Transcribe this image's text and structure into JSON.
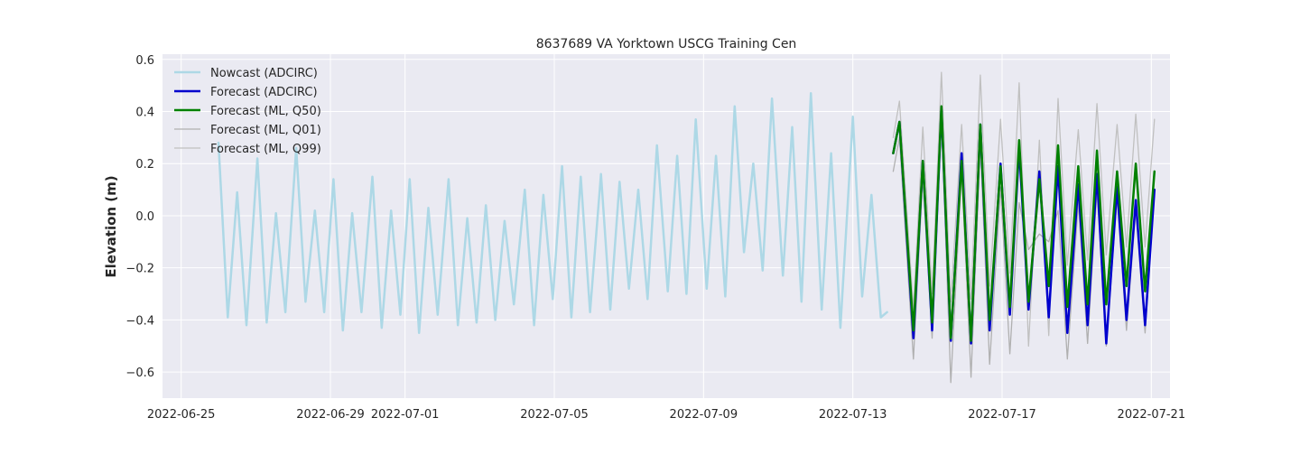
{
  "chart_data": {
    "type": "line",
    "title": "8637689 VA Yorktown USCG Training Cen",
    "xlabel": "",
    "ylabel": "Elevation (m)",
    "xlim": [
      "2022-06-24T12:00",
      "2022-07-21T12:00"
    ],
    "ylim": [
      -0.7,
      0.62
    ],
    "x_ticks": [
      "2022-06-25",
      "2022-06-29",
      "2022-07-01",
      "2022-07-05",
      "2022-07-09",
      "2022-07-13",
      "2022-07-17",
      "2022-07-21"
    ],
    "y_ticks": [
      -0.6,
      -0.4,
      -0.2,
      0.0,
      0.2,
      0.4,
      0.6
    ],
    "y_tick_labels": [
      "−0.6",
      "−0.4",
      "−0.2",
      "0.0",
      "0.2",
      "0.4",
      "0.6"
    ],
    "grid": true,
    "legend_position": "top-left",
    "series": [
      {
        "name": "Nowcast (ADCIRC)",
        "color": "#add8e6",
        "width": 2.5,
        "points": [
          [
            "2022-06-26T00:00",
            0.28
          ],
          [
            "2022-06-26T06:00",
            -0.39
          ],
          [
            "2022-06-26T12:00",
            0.09
          ],
          [
            "2022-06-26T18:00",
            -0.42
          ],
          [
            "2022-06-27T01:00",
            0.22
          ],
          [
            "2022-06-27T07:00",
            -0.41
          ],
          [
            "2022-06-27T13:00",
            0.01
          ],
          [
            "2022-06-27T19:00",
            -0.37
          ],
          [
            "2022-06-28T02:00",
            0.26
          ],
          [
            "2022-06-28T08:00",
            -0.33
          ],
          [
            "2022-06-28T14:00",
            0.02
          ],
          [
            "2022-06-28T20:00",
            -0.37
          ],
          [
            "2022-06-29T02:00",
            0.14
          ],
          [
            "2022-06-29T08:00",
            -0.44
          ],
          [
            "2022-06-29T14:00",
            0.01
          ],
          [
            "2022-06-29T20:00",
            -0.37
          ],
          [
            "2022-06-30T03:00",
            0.15
          ],
          [
            "2022-06-30T09:00",
            -0.43
          ],
          [
            "2022-06-30T15:00",
            0.02
          ],
          [
            "2022-06-30T21:00",
            -0.38
          ],
          [
            "2022-07-01T03:00",
            0.14
          ],
          [
            "2022-07-01T09:00",
            -0.45
          ],
          [
            "2022-07-01T15:00",
            0.03
          ],
          [
            "2022-07-01T21:00",
            -0.38
          ],
          [
            "2022-07-02T04:00",
            0.14
          ],
          [
            "2022-07-02T10:00",
            -0.42
          ],
          [
            "2022-07-02T16:00",
            -0.01
          ],
          [
            "2022-07-02T22:00",
            -0.41
          ],
          [
            "2022-07-03T04:00",
            0.04
          ],
          [
            "2022-07-03T10:00",
            -0.4
          ],
          [
            "2022-07-03T16:00",
            -0.02
          ],
          [
            "2022-07-03T22:00",
            -0.34
          ],
          [
            "2022-07-04T05:00",
            0.1
          ],
          [
            "2022-07-04T11:00",
            -0.42
          ],
          [
            "2022-07-04T17:00",
            0.08
          ],
          [
            "2022-07-04T23:00",
            -0.32
          ],
          [
            "2022-07-05T05:00",
            0.19
          ],
          [
            "2022-07-05T11:00",
            -0.39
          ],
          [
            "2022-07-05T17:00",
            0.15
          ],
          [
            "2022-07-05T23:00",
            -0.37
          ],
          [
            "2022-07-06T06:00",
            0.16
          ],
          [
            "2022-07-06T12:00",
            -0.36
          ],
          [
            "2022-07-06T18:00",
            0.13
          ],
          [
            "2022-07-07T00:00",
            -0.28
          ],
          [
            "2022-07-07T06:00",
            0.1
          ],
          [
            "2022-07-07T12:00",
            -0.32
          ],
          [
            "2022-07-07T18:00",
            0.27
          ],
          [
            "2022-07-08T01:00",
            -0.29
          ],
          [
            "2022-07-08T07:00",
            0.23
          ],
          [
            "2022-07-08T13:00",
            -0.3
          ],
          [
            "2022-07-08T19:00",
            0.37
          ],
          [
            "2022-07-09T02:00",
            -0.28
          ],
          [
            "2022-07-09T08:00",
            0.23
          ],
          [
            "2022-07-09T14:00",
            -0.31
          ],
          [
            "2022-07-09T20:00",
            0.42
          ],
          [
            "2022-07-10T02:00",
            -0.14
          ],
          [
            "2022-07-10T08:00",
            0.2
          ],
          [
            "2022-07-10T14:00",
            -0.21
          ],
          [
            "2022-07-10T20:00",
            0.45
          ],
          [
            "2022-07-11T03:00",
            -0.23
          ],
          [
            "2022-07-11T09:00",
            0.34
          ],
          [
            "2022-07-11T15:00",
            -0.33
          ],
          [
            "2022-07-11T21:00",
            0.47
          ],
          [
            "2022-07-12T04:00",
            -0.36
          ],
          [
            "2022-07-12T10:00",
            0.24
          ],
          [
            "2022-07-12T16:00",
            -0.43
          ],
          [
            "2022-07-13T00:00",
            0.38
          ],
          [
            "2022-07-13T06:00",
            -0.31
          ],
          [
            "2022-07-13T12:00",
            0.08
          ],
          [
            "2022-07-13T18:00",
            -0.39
          ],
          [
            "2022-07-13T22:00",
            -0.37
          ]
        ]
      },
      {
        "name": "Forecast (ADCIRC)",
        "color": "#0000cd",
        "width": 2.5,
        "points": [
          [
            "2022-07-14T02:00",
            0.24
          ],
          [
            "2022-07-14T06:00",
            0.36
          ],
          [
            "2022-07-14T15:00",
            -0.47
          ],
          [
            "2022-07-14T21:00",
            0.21
          ],
          [
            "2022-07-15T03:00",
            -0.44
          ],
          [
            "2022-07-15T09:00",
            0.41
          ],
          [
            "2022-07-15T15:00",
            -0.48
          ],
          [
            "2022-07-15T22:00",
            0.24
          ],
          [
            "2022-07-16T04:00",
            -0.49
          ],
          [
            "2022-07-16T10:00",
            0.35
          ],
          [
            "2022-07-16T16:00",
            -0.44
          ],
          [
            "2022-07-16T23:00",
            0.2
          ],
          [
            "2022-07-17T05:00",
            -0.38
          ],
          [
            "2022-07-17T11:00",
            0.26
          ],
          [
            "2022-07-17T17:00",
            -0.36
          ],
          [
            "2022-07-18T00:00",
            0.17
          ],
          [
            "2022-07-18T06:00",
            -0.39
          ],
          [
            "2022-07-18T12:00",
            0.19
          ],
          [
            "2022-07-18T18:00",
            -0.45
          ],
          [
            "2022-07-19T01:00",
            0.12
          ],
          [
            "2022-07-19T07:00",
            -0.42
          ],
          [
            "2022-07-19T13:00",
            0.16
          ],
          [
            "2022-07-19T19:00",
            -0.49
          ],
          [
            "2022-07-20T02:00",
            0.11
          ],
          [
            "2022-07-20T08:00",
            -0.4
          ],
          [
            "2022-07-20T14:00",
            0.06
          ],
          [
            "2022-07-20T20:00",
            -0.42
          ],
          [
            "2022-07-21T02:00",
            0.1
          ]
        ]
      },
      {
        "name": "Forecast (ML, Q50)",
        "color": "#008000",
        "width": 2.5,
        "points": [
          [
            "2022-07-14T02:00",
            0.24
          ],
          [
            "2022-07-14T06:00",
            0.36
          ],
          [
            "2022-07-14T15:00",
            -0.44
          ],
          [
            "2022-07-14T21:00",
            0.21
          ],
          [
            "2022-07-15T03:00",
            -0.41
          ],
          [
            "2022-07-15T09:00",
            0.42
          ],
          [
            "2022-07-15T15:00",
            -0.47
          ],
          [
            "2022-07-15T22:00",
            0.21
          ],
          [
            "2022-07-16T04:00",
            -0.48
          ],
          [
            "2022-07-16T10:00",
            0.35
          ],
          [
            "2022-07-16T16:00",
            -0.4
          ],
          [
            "2022-07-16T23:00",
            0.19
          ],
          [
            "2022-07-17T05:00",
            -0.35
          ],
          [
            "2022-07-17T11:00",
            0.29
          ],
          [
            "2022-07-17T17:00",
            -0.33
          ],
          [
            "2022-07-18T00:00",
            0.14
          ],
          [
            "2022-07-18T06:00",
            -0.27
          ],
          [
            "2022-07-18T12:00",
            0.27
          ],
          [
            "2022-07-18T18:00",
            -0.35
          ],
          [
            "2022-07-19T01:00",
            0.19
          ],
          [
            "2022-07-19T07:00",
            -0.34
          ],
          [
            "2022-07-19T13:00",
            0.25
          ],
          [
            "2022-07-19T19:00",
            -0.34
          ],
          [
            "2022-07-20T02:00",
            0.17
          ],
          [
            "2022-07-20T08:00",
            -0.27
          ],
          [
            "2022-07-20T14:00",
            0.2
          ],
          [
            "2022-07-20T20:00",
            -0.29
          ],
          [
            "2022-07-21T02:00",
            0.17
          ]
        ]
      },
      {
        "name": "Forecast (ML, Q01)",
        "color": "#b0b0b0",
        "width": 1.3,
        "points": [
          [
            "2022-07-14T02:00",
            0.17
          ],
          [
            "2022-07-14T06:00",
            0.3
          ],
          [
            "2022-07-14T15:00",
            -0.55
          ],
          [
            "2022-07-14T21:00",
            0.15
          ],
          [
            "2022-07-15T03:00",
            -0.47
          ],
          [
            "2022-07-15T09:00",
            0.37
          ],
          [
            "2022-07-15T15:00",
            -0.64
          ],
          [
            "2022-07-15T22:00",
            0.17
          ],
          [
            "2022-07-16T04:00",
            -0.62
          ],
          [
            "2022-07-16T10:00",
            0.27
          ],
          [
            "2022-07-16T16:00",
            -0.57
          ],
          [
            "2022-07-16T23:00",
            0.11
          ],
          [
            "2022-07-17T05:00",
            -0.53
          ],
          [
            "2022-07-17T11:00",
            0.05
          ],
          [
            "2022-07-17T17:00",
            -0.13
          ],
          [
            "2022-07-18T00:00",
            -0.07
          ],
          [
            "2022-07-18T06:00",
            -0.1
          ],
          [
            "2022-07-18T12:00",
            0.02
          ],
          [
            "2022-07-18T18:00",
            -0.55
          ],
          [
            "2022-07-19T01:00",
            0.05
          ],
          [
            "2022-07-19T07:00",
            -0.49
          ],
          [
            "2022-07-19T13:00",
            0.1
          ],
          [
            "2022-07-19T19:00",
            -0.5
          ],
          [
            "2022-07-20T02:00",
            0.07
          ],
          [
            "2022-07-20T08:00",
            -0.44
          ],
          [
            "2022-07-20T14:00",
            0.02
          ],
          [
            "2022-07-20T20:00",
            -0.45
          ],
          [
            "2022-07-21T02:00",
            0.09
          ]
        ]
      },
      {
        "name": "Forecast (ML, Q99)",
        "color": "#c0c0c0",
        "width": 1.3,
        "points": [
          [
            "2022-07-14T02:00",
            0.3
          ],
          [
            "2022-07-14T06:00",
            0.44
          ],
          [
            "2022-07-14T15:00",
            -0.36
          ],
          [
            "2022-07-14T21:00",
            0.34
          ],
          [
            "2022-07-15T03:00",
            -0.3
          ],
          [
            "2022-07-15T09:00",
            0.55
          ],
          [
            "2022-07-15T15:00",
            -0.33
          ],
          [
            "2022-07-15T22:00",
            0.35
          ],
          [
            "2022-07-16T04:00",
            -0.32
          ],
          [
            "2022-07-16T10:00",
            0.54
          ],
          [
            "2022-07-16T16:00",
            -0.27
          ],
          [
            "2022-07-16T23:00",
            0.37
          ],
          [
            "2022-07-17T05:00",
            -0.22
          ],
          [
            "2022-07-17T11:00",
            0.51
          ],
          [
            "2022-07-17T17:00",
            -0.5
          ],
          [
            "2022-07-18T00:00",
            0.29
          ],
          [
            "2022-07-18T06:00",
            -0.46
          ],
          [
            "2022-07-18T12:00",
            0.45
          ],
          [
            "2022-07-18T18:00",
            -0.19
          ],
          [
            "2022-07-19T01:00",
            0.33
          ],
          [
            "2022-07-19T07:00",
            -0.17
          ],
          [
            "2022-07-19T13:00",
            0.43
          ],
          [
            "2022-07-19T19:00",
            -0.15
          ],
          [
            "2022-07-20T02:00",
            0.35
          ],
          [
            "2022-07-20T08:00",
            -0.12
          ],
          [
            "2022-07-20T14:00",
            0.39
          ],
          [
            "2022-07-20T20:00",
            -0.12
          ],
          [
            "2022-07-21T02:00",
            0.37
          ]
        ]
      }
    ]
  }
}
